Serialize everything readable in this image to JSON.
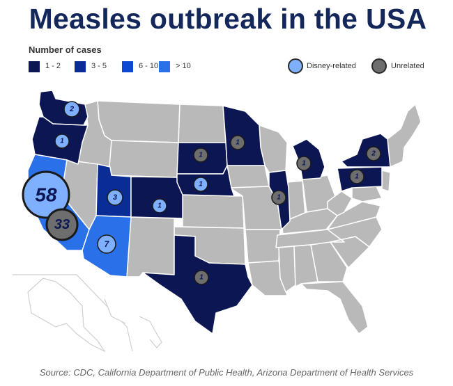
{
  "title": "Measles outbreak in the USA",
  "legend": {
    "title": "Number of cases",
    "ranges": [
      {
        "label": "1 - 2",
        "color": "#0b1653"
      },
      {
        "label": "3 - 5",
        "color": "#0a2c95"
      },
      {
        "label": "6 - 10",
        "color": "#0d47d6"
      },
      {
        "label": "> 10",
        "color": "#2a70e8"
      }
    ],
    "circles": [
      {
        "label": "Disney-related",
        "color": "#7fb0ff"
      },
      {
        "label": "Unrelated",
        "color": "#6e6e6e"
      }
    ]
  },
  "cases": [
    {
      "state": "California",
      "count": "58",
      "type": "Disney-related"
    },
    {
      "state": "California",
      "count": "33",
      "type": "Unrelated"
    },
    {
      "state": "Arizona",
      "count": "7",
      "type": "Disney-related"
    },
    {
      "state": "Utah",
      "count": "3",
      "type": "Disney-related"
    },
    {
      "state": "Washington",
      "count": "2",
      "type": "Disney-related"
    },
    {
      "state": "Oregon",
      "count": "1",
      "type": "Disney-related"
    },
    {
      "state": "Colorado",
      "count": "1",
      "type": "Disney-related"
    },
    {
      "state": "Nebraska",
      "count": "1",
      "type": "Disney-related"
    },
    {
      "state": "Texas",
      "count": "1",
      "type": "Unrelated"
    },
    {
      "state": "South Dakota",
      "count": "1",
      "type": "Unrelated"
    },
    {
      "state": "Minnesota",
      "count": "1",
      "type": "Unrelated"
    },
    {
      "state": "Illinois",
      "count": "1",
      "type": "Unrelated"
    },
    {
      "state": "Michigan",
      "count": "1",
      "type": "Unrelated"
    },
    {
      "state": "Pennsylvania",
      "count": "1",
      "type": "Unrelated"
    },
    {
      "state": "New York",
      "count": "2",
      "type": "Unrelated"
    }
  ],
  "source": "Source: CDC, California Department of Public Health, Arizona Department of Health Services"
}
